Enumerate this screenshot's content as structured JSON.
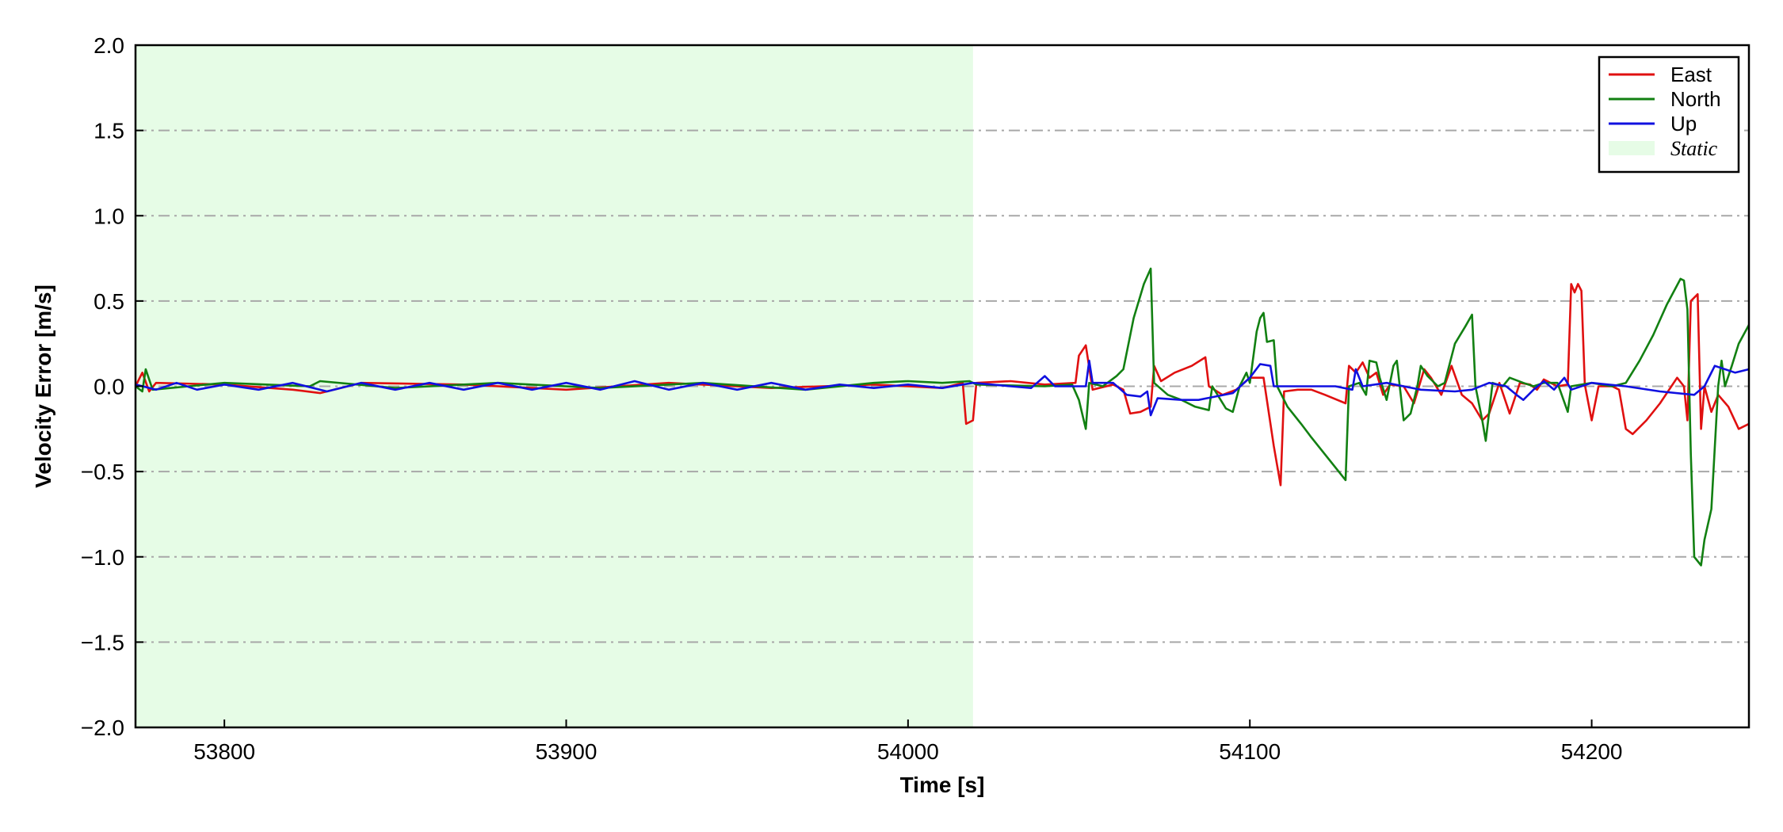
{
  "chart_data": {
    "type": "line",
    "xlabel": "Time [s]",
    "ylabel": "Velocity Error [m/s]",
    "xlim": [
      53774,
      54246
    ],
    "ylim": [
      -2.0,
      2.0
    ],
    "x_ticks": [
      53800,
      53900,
      54000,
      54100,
      54200
    ],
    "x_tick_labels": [
      "53800",
      "53900",
      "54000",
      "54100",
      "54200"
    ],
    "y_ticks": [
      -2.0,
      -1.5,
      -1.0,
      -0.5,
      0.0,
      0.5,
      1.0,
      1.5,
      2.0
    ],
    "y_tick_labels": [
      "−2.0",
      "−1.5",
      "−1.0",
      "−0.5",
      "0.0",
      "0.5",
      "1.0",
      "1.5",
      "2.0"
    ],
    "grid": "horizontal dash-dot",
    "legend_position": "top-right",
    "shaded_region": {
      "label": "Static",
      "x_start": 53774,
      "x_end": 54019,
      "color": "#e6fce6"
    },
    "series": [
      {
        "name": "East",
        "color": "#e01010",
        "points": [
          [
            53774,
            0.0
          ],
          [
            53776,
            0.08
          ],
          [
            53778,
            -0.03
          ],
          [
            53780,
            0.02
          ],
          [
            53800,
            0.01
          ],
          [
            53820,
            -0.02
          ],
          [
            53828,
            -0.04
          ],
          [
            53840,
            0.02
          ],
          [
            53870,
            0.01
          ],
          [
            53900,
            -0.02
          ],
          [
            53930,
            0.02
          ],
          [
            53960,
            -0.01
          ],
          [
            53990,
            0.01
          ],
          [
            54010,
            -0.01
          ],
          [
            54016,
            0.02
          ],
          [
            54017,
            -0.22
          ],
          [
            54019,
            -0.2
          ],
          [
            54020,
            0.02
          ],
          [
            54030,
            0.03
          ],
          [
            54040,
            0.01
          ],
          [
            54049,
            0.02
          ],
          [
            54050,
            0.18
          ],
          [
            54052,
            0.24
          ],
          [
            54054,
            -0.02
          ],
          [
            54060,
            0.01
          ],
          [
            54063,
            -0.02
          ],
          [
            54065,
            -0.16
          ],
          [
            54068,
            -0.15
          ],
          [
            54071,
            -0.12
          ],
          [
            54072,
            0.12
          ],
          [
            54074,
            0.03
          ],
          [
            54078,
            0.08
          ],
          [
            54083,
            0.12
          ],
          [
            54087,
            0.17
          ],
          [
            54088,
            0.0
          ],
          [
            54092,
            -0.05
          ],
          [
            54096,
            -0.02
          ],
          [
            54100,
            0.05
          ],
          [
            54104,
            0.05
          ],
          [
            54107,
            -0.35
          ],
          [
            54109,
            -0.58
          ],
          [
            54110,
            -0.03
          ],
          [
            54114,
            -0.02
          ],
          [
            54118,
            -0.02
          ],
          [
            54122,
            -0.05
          ],
          [
            54128,
            -0.1
          ],
          [
            54129,
            0.12
          ],
          [
            54131,
            0.08
          ],
          [
            54133,
            0.14
          ],
          [
            54135,
            0.05
          ],
          [
            54137,
            0.08
          ],
          [
            54139,
            -0.05
          ],
          [
            54141,
            0.01
          ],
          [
            54145,
            0.0
          ],
          [
            54148,
            -0.1
          ],
          [
            54151,
            0.1
          ],
          [
            54153,
            0.05
          ],
          [
            54156,
            -0.05
          ],
          [
            54159,
            0.12
          ],
          [
            54162,
            -0.05
          ],
          [
            54165,
            -0.1
          ],
          [
            54168,
            -0.2
          ],
          [
            54170,
            -0.16
          ],
          [
            54173,
            0.02
          ],
          [
            54176,
            -0.16
          ],
          [
            54179,
            0.02
          ],
          [
            54182,
            0.01
          ],
          [
            54184,
            -0.02
          ],
          [
            54186,
            0.04
          ],
          [
            54190,
            0.0
          ],
          [
            54193,
            0.01
          ],
          [
            54194,
            0.6
          ],
          [
            54195,
            0.55
          ],
          [
            54196,
            0.6
          ],
          [
            54197,
            0.56
          ],
          [
            54198,
            0.01
          ],
          [
            54200,
            -0.2
          ],
          [
            54202,
            0.0
          ],
          [
            54206,
            0.0
          ],
          [
            54208,
            -0.02
          ],
          [
            54210,
            -0.25
          ],
          [
            54212,
            -0.28
          ],
          [
            54216,
            -0.2
          ],
          [
            54220,
            -0.1
          ],
          [
            54225,
            0.05
          ],
          [
            54227,
            0.0
          ],
          [
            54228,
            -0.2
          ],
          [
            54229,
            0.5
          ],
          [
            54231,
            0.54
          ],
          [
            54232,
            -0.25
          ],
          [
            54233,
            0.0
          ],
          [
            54235,
            -0.15
          ],
          [
            54237,
            -0.05
          ],
          [
            54240,
            -0.12
          ],
          [
            54243,
            -0.25
          ],
          [
            54246,
            -0.22
          ]
        ]
      },
      {
        "name": "North",
        "color": "#128012",
        "points": [
          [
            53774,
            0.0
          ],
          [
            53776,
            -0.03
          ],
          [
            53777,
            0.1
          ],
          [
            53779,
            -0.02
          ],
          [
            53800,
            0.02
          ],
          [
            53825,
            0.0
          ],
          [
            53828,
            0.03
          ],
          [
            53850,
            -0.01
          ],
          [
            53880,
            0.02
          ],
          [
            53910,
            -0.01
          ],
          [
            53940,
            0.02
          ],
          [
            53970,
            -0.02
          ],
          [
            53990,
            0.02
          ],
          [
            54000,
            0.03
          ],
          [
            54010,
            0.02
          ],
          [
            54018,
            0.03
          ],
          [
            54020,
            0.01
          ],
          [
            54040,
            0.0
          ],
          [
            54048,
            0.01
          ],
          [
            54050,
            -0.08
          ],
          [
            54052,
            -0.25
          ],
          [
            54053,
            0.02
          ],
          [
            54057,
            0.0
          ],
          [
            54061,
            0.06
          ],
          [
            54063,
            0.1
          ],
          [
            54066,
            0.4
          ],
          [
            54069,
            0.6
          ],
          [
            54071,
            0.69
          ],
          [
            54072,
            0.02
          ],
          [
            54076,
            -0.05
          ],
          [
            54080,
            -0.08
          ],
          [
            54084,
            -0.12
          ],
          [
            54088,
            -0.14
          ],
          [
            54089,
            0.0
          ],
          [
            54093,
            -0.13
          ],
          [
            54095,
            -0.15
          ],
          [
            54097,
            0.0
          ],
          [
            54099,
            0.08
          ],
          [
            54100,
            0.02
          ],
          [
            54102,
            0.32
          ],
          [
            54103,
            0.4
          ],
          [
            54104,
            0.43
          ],
          [
            54105,
            0.26
          ],
          [
            54107,
            0.27
          ],
          [
            54108,
            0.0
          ],
          [
            54111,
            -0.12
          ],
          [
            54115,
            -0.22
          ],
          [
            54118,
            -0.3
          ],
          [
            54122,
            -0.4
          ],
          [
            54128,
            -0.55
          ],
          [
            54129,
            0.0
          ],
          [
            54132,
            0.02
          ],
          [
            54134,
            -0.05
          ],
          [
            54135,
            0.15
          ],
          [
            54137,
            0.14
          ],
          [
            54138,
            0.05
          ],
          [
            54140,
            -0.08
          ],
          [
            54142,
            0.12
          ],
          [
            54143,
            0.15
          ],
          [
            54145,
            -0.2
          ],
          [
            54147,
            -0.16
          ],
          [
            54149,
            0.0
          ],
          [
            54150,
            0.12
          ],
          [
            54152,
            0.06
          ],
          [
            54155,
            0.0
          ],
          [
            54157,
            0.02
          ],
          [
            54160,
            0.25
          ],
          [
            54163,
            0.35
          ],
          [
            54165,
            0.42
          ],
          [
            54166,
            0.0
          ],
          [
            54168,
            -0.2
          ],
          [
            54169,
            -0.32
          ],
          [
            54171,
            0.02
          ],
          [
            54174,
            0.0
          ],
          [
            54176,
            0.05
          ],
          [
            54180,
            0.02
          ],
          [
            54183,
            0.0
          ],
          [
            54186,
            0.02
          ],
          [
            54190,
            0.02
          ],
          [
            54193,
            -0.15
          ],
          [
            54194,
            0.0
          ],
          [
            54200,
            0.02
          ],
          [
            54206,
            0.0
          ],
          [
            54210,
            0.02
          ],
          [
            54214,
            0.15
          ],
          [
            54218,
            0.3
          ],
          [
            54222,
            0.48
          ],
          [
            54226,
            0.63
          ],
          [
            54227,
            0.62
          ],
          [
            54228,
            0.45
          ],
          [
            54229,
            -0.4
          ],
          [
            54230,
            -1.0
          ],
          [
            54232,
            -1.05
          ],
          [
            54233,
            -0.9
          ],
          [
            54235,
            -0.72
          ],
          [
            54237,
            0.0
          ],
          [
            54238,
            0.15
          ],
          [
            54239,
            0.0
          ],
          [
            54241,
            0.12
          ],
          [
            54243,
            0.25
          ],
          [
            54246,
            0.36
          ]
        ]
      },
      {
        "name": "Up",
        "color": "#1010e0",
        "points": [
          [
            53774,
            0.01
          ],
          [
            53780,
            -0.02
          ],
          [
            53786,
            0.02
          ],
          [
            53792,
            -0.02
          ],
          [
            53800,
            0.01
          ],
          [
            53810,
            -0.02
          ],
          [
            53820,
            0.02
          ],
          [
            53830,
            -0.03
          ],
          [
            53840,
            0.02
          ],
          [
            53850,
            -0.02
          ],
          [
            53860,
            0.02
          ],
          [
            53870,
            -0.02
          ],
          [
            53880,
            0.02
          ],
          [
            53890,
            -0.02
          ],
          [
            53900,
            0.02
          ],
          [
            53910,
            -0.02
          ],
          [
            53920,
            0.03
          ],
          [
            53930,
            -0.02
          ],
          [
            53940,
            0.02
          ],
          [
            53950,
            -0.02
          ],
          [
            53960,
            0.02
          ],
          [
            53970,
            -0.02
          ],
          [
            53980,
            0.01
          ],
          [
            53990,
            -0.01
          ],
          [
            54000,
            0.01
          ],
          [
            54010,
            -0.01
          ],
          [
            54019,
            0.02
          ],
          [
            54030,
            0.0
          ],
          [
            54036,
            -0.01
          ],
          [
            54040,
            0.06
          ],
          [
            54043,
            0.0
          ],
          [
            54052,
            0.0
          ],
          [
            54053,
            0.15
          ],
          [
            54054,
            0.02
          ],
          [
            54060,
            0.02
          ],
          [
            54064,
            -0.05
          ],
          [
            54068,
            -0.06
          ],
          [
            54070,
            -0.03
          ],
          [
            54071,
            -0.17
          ],
          [
            54073,
            -0.07
          ],
          [
            54080,
            -0.08
          ],
          [
            54085,
            -0.08
          ],
          [
            54090,
            -0.06
          ],
          [
            54095,
            -0.04
          ],
          [
            54100,
            0.05
          ],
          [
            54103,
            0.13
          ],
          [
            54106,
            0.12
          ],
          [
            54107,
            0.0
          ],
          [
            54115,
            0.0
          ],
          [
            54125,
            0.0
          ],
          [
            54130,
            -0.02
          ],
          [
            54131,
            0.1
          ],
          [
            54133,
            0.0
          ],
          [
            54140,
            0.02
          ],
          [
            54150,
            -0.02
          ],
          [
            54160,
            -0.03
          ],
          [
            54165,
            -0.02
          ],
          [
            54170,
            0.02
          ],
          [
            54175,
            0.0
          ],
          [
            54178,
            -0.05
          ],
          [
            54180,
            -0.08
          ],
          [
            54183,
            -0.02
          ],
          [
            54186,
            0.03
          ],
          [
            54189,
            -0.02
          ],
          [
            54192,
            0.05
          ],
          [
            54194,
            -0.02
          ],
          [
            54200,
            0.02
          ],
          [
            54210,
            0.0
          ],
          [
            54220,
            -0.03
          ],
          [
            54230,
            -0.05
          ],
          [
            54233,
            0.0
          ],
          [
            54236,
            0.12
          ],
          [
            54239,
            0.1
          ],
          [
            54242,
            0.08
          ],
          [
            54246,
            0.1
          ]
        ]
      }
    ]
  }
}
